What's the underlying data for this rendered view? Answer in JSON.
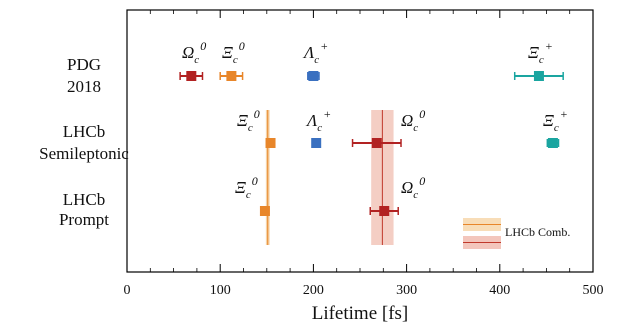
{
  "chart_data": {
    "type": "scatter",
    "xlabel": "Lifetime [fs]",
    "xlim": [
      0,
      500
    ],
    "xticks": [
      "0",
      "100",
      "200",
      "300",
      "400",
      "500"
    ],
    "rows": [
      {
        "label_lines": [
          "PDG",
          "2018"
        ]
      },
      {
        "label_lines": [
          "LHCb",
          "Semileptonic"
        ]
      },
      {
        "label_lines": [
          "LHCb",
          "Prompt"
        ]
      }
    ],
    "points": [
      {
        "row": 0,
        "x": 69,
        "err": 12,
        "color": "#b22222",
        "sym": "Ω",
        "sub": "c",
        "sup": "0"
      },
      {
        "row": 0,
        "x": 112,
        "err": 12,
        "color": "#e8862a",
        "sym": "Ξ",
        "sub": "c",
        "sup": "0"
      },
      {
        "row": 0,
        "x": 200,
        "err": 6,
        "color": "#3a70c0",
        "sym": "Λ",
        "sub": "c",
        "sup": "+"
      },
      {
        "row": 0,
        "x": 442,
        "err": 26,
        "color": "#1aa5a0",
        "sym": "Ξ",
        "sub": "c",
        "sup": "+"
      },
      {
        "row": 1,
        "x": 154,
        "err": 4,
        "color": "#e8862a",
        "sym": "Ξ",
        "sub": "c",
        "sup": "0"
      },
      {
        "row": 1,
        "x": 203,
        "err": 3,
        "color": "#3a70c0",
        "sym": "Λ",
        "sub": "c",
        "sup": "+"
      },
      {
        "row": 1,
        "x": 268,
        "err": 26,
        "color": "#b22222",
        "sym": "Ω",
        "sub": "c",
        "sup": "0"
      },
      {
        "row": 1,
        "x": 457,
        "err": 6,
        "color": "#1aa5a0",
        "sym": "Ξ",
        "sub": "c",
        "sup": "+"
      },
      {
        "row": 2,
        "x": 148,
        "err": 3,
        "color": "#e8862a",
        "sym": "Ξ",
        "sub": "c",
        "sup": "0"
      },
      {
        "row": 2,
        "x": 276,
        "err": 15,
        "color": "#b22222",
        "sym": "Ω",
        "sub": "c",
        "sup": "0"
      }
    ],
    "bands": [
      {
        "center": 151,
        "halfwidth": 2,
        "color": "#f2c48a",
        "line": "#e8862a"
      },
      {
        "center": 274,
        "halfwidth": 12,
        "color": "#f0bdb0",
        "line": "#c0392b"
      }
    ],
    "legend": {
      "label": "LHCb Comb.",
      "swatches": [
        {
          "fill": "#f8ddb8",
          "line": "#e8862a"
        },
        {
          "fill": "#f3c6bc",
          "line": "#c0392b"
        }
      ]
    }
  }
}
